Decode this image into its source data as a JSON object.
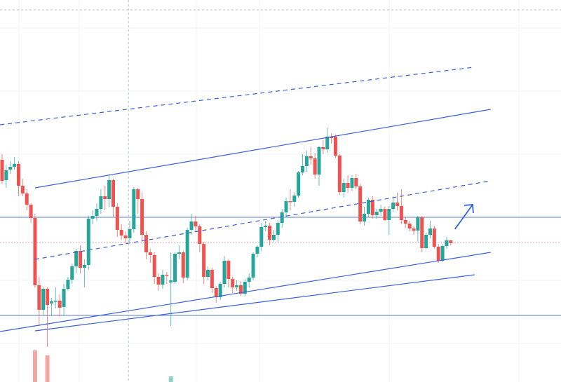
{
  "chart_data": {
    "type": "candlestick",
    "title": "",
    "xlabel": "",
    "ylabel": "",
    "grid": true,
    "colors": {
      "up": "#26a69a",
      "down": "#ef5350",
      "drawing": "#3d5fd6",
      "level": "#5b7bc4",
      "dotted": "#e0a0a0",
      "grid": "#f0f3fa"
    },
    "ylim": [
      0,
      600
    ],
    "candles_ohlc": [
      [
        372,
        380,
        338,
        342
      ],
      [
        343,
        365,
        332,
        357
      ],
      [
        358,
        370,
        352,
        362
      ],
      [
        362,
        376,
        358,
        366
      ],
      [
        366,
        370,
        320,
        335
      ],
      [
        335,
        345,
        320,
        324
      ],
      [
        324,
        330,
        300,
        308
      ],
      [
        308,
        310,
        282,
        289
      ],
      [
        289,
        295,
        190,
        193
      ],
      [
        193,
        205,
        135,
        158
      ],
      [
        158,
        190,
        150,
        188
      ],
      [
        188,
        190,
        105,
        165
      ],
      [
        167,
        175,
        150,
        170
      ],
      [
        170,
        190,
        160,
        171
      ],
      [
        171,
        180,
        148,
        161
      ],
      [
        162,
        195,
        150,
        188
      ],
      [
        188,
        205,
        185,
        201
      ],
      [
        201,
        224,
        195,
        220
      ],
      [
        220,
        245,
        210,
        242
      ],
      [
        242,
        250,
        210,
        218
      ],
      [
        218,
        230,
        190,
        222
      ],
      [
        222,
        292,
        215,
        288
      ],
      [
        288,
        300,
        280,
        292
      ],
      [
        292,
        310,
        285,
        302
      ],
      [
        302,
        330,
        295,
        320
      ],
      [
        320,
        335,
        300,
        316
      ],
      [
        316,
        350,
        305,
        343
      ],
      [
        343,
        345,
        290,
        305
      ],
      [
        305,
        310,
        262,
        272
      ],
      [
        272,
        280,
        258,
        264
      ],
      [
        264,
        270,
        252,
        260
      ],
      [
        260,
        285,
        255,
        273
      ],
      [
        273,
        333,
        268,
        330
      ],
      [
        330,
        332,
        295,
        316
      ],
      [
        316,
        325,
        255,
        265
      ],
      [
        265,
        270,
        230,
        240
      ],
      [
        240,
        245,
        225,
        236
      ],
      [
        236,
        240,
        195,
        205
      ],
      [
        205,
        210,
        185,
        194
      ],
      [
        194,
        215,
        188,
        208
      ],
      [
        208,
        212,
        195,
        207
      ],
      [
        197,
        240,
        135,
        200
      ],
      [
        198,
        240,
        195,
        238
      ],
      [
        238,
        250,
        230,
        240
      ],
      [
        240,
        242,
        196,
        204
      ],
      [
        204,
        275,
        200,
        272
      ],
      [
        272,
        295,
        265,
        284
      ],
      [
        284,
        292,
        270,
        277
      ],
      [
        277,
        280,
        240,
        252
      ],
      [
        252,
        255,
        195,
        205
      ],
      [
        205,
        220,
        200,
        215
      ],
      [
        215,
        218,
        182,
        189
      ],
      [
        189,
        192,
        168,
        176
      ],
      [
        176,
        198,
        172,
        195
      ],
      [
        195,
        235,
        190,
        228
      ],
      [
        228,
        230,
        190,
        202
      ],
      [
        202,
        205,
        182,
        190
      ],
      [
        190,
        200,
        185,
        193
      ],
      [
        193,
        198,
        178,
        181
      ],
      [
        181,
        202,
        178,
        198
      ],
      [
        198,
        210,
        190,
        204
      ],
      [
        204,
        240,
        200,
        238
      ],
      [
        238,
        250,
        233,
        248
      ],
      [
        248,
        282,
        242,
        276
      ],
      [
        276,
        285,
        270,
        278
      ],
      [
        278,
        282,
        250,
        258
      ],
      [
        258,
        272,
        255,
        265
      ],
      [
        265,
        285,
        255,
        282
      ],
      [
        282,
        302,
        275,
        297
      ],
      [
        297,
        318,
        290,
        313
      ],
      [
        313,
        330,
        300,
        312
      ],
      [
        312,
        325,
        305,
        321
      ],
      [
        321,
        356,
        318,
        354
      ],
      [
        354,
        380,
        350,
        363
      ],
      [
        363,
        385,
        355,
        377
      ],
      [
        377,
        390,
        365,
        374
      ],
      [
        374,
        382,
        345,
        351
      ],
      [
        351,
        392,
        335,
        390
      ],
      [
        390,
        400,
        380,
        387
      ],
      [
        387,
        418,
        382,
        405
      ],
      [
        405,
        410,
        395,
        403
      ],
      [
        405,
        408,
        375,
        378
      ],
      [
        378,
        380,
        322,
        326
      ],
      [
        326,
        345,
        318,
        339
      ],
      [
        339,
        350,
        325,
        332
      ],
      [
        332,
        350,
        328,
        346
      ],
      [
        346,
        352,
        330,
        334
      ],
      [
        334,
        338,
        280,
        284
      ],
      [
        284,
        305,
        278,
        295
      ],
      [
        295,
        318,
        290,
        315
      ],
      [
        315,
        320,
        288,
        293
      ],
      [
        293,
        302,
        288,
        298
      ],
      [
        298,
        308,
        292,
        302
      ],
      [
        302,
        305,
        285,
        286
      ],
      [
        286,
        306,
        265,
        302
      ],
      [
        302,
        320,
        298,
        311
      ],
      [
        311,
        325,
        300,
        306
      ],
      [
        306,
        330,
        280,
        286
      ],
      [
        286,
        290,
        275,
        281
      ],
      [
        281,
        285,
        270,
        274
      ],
      [
        274,
        278,
        265,
        271
      ],
      [
        271,
        292,
        255,
        290
      ],
      [
        290,
        292,
        240,
        246
      ],
      [
        246,
        268,
        245,
        265
      ],
      [
        265,
        285,
        260,
        274
      ],
      [
        274,
        278,
        245,
        248
      ],
      [
        248,
        252,
        225,
        228
      ],
      [
        228,
        252,
        226,
        249
      ],
      [
        249,
        262,
        245,
        257
      ],
      [
        257,
        258,
        250,
        253
      ]
    ],
    "volume_bars": [
      {
        "index": 8,
        "value": 45,
        "direction": "down"
      },
      {
        "index": 11,
        "value": 38,
        "direction": "down"
      },
      {
        "index": 41,
        "value": 8,
        "direction": "up"
      }
    ],
    "drawings": {
      "trendlines": [
        {
          "style": "solid",
          "from": [
            8,
            332
          ],
          "to": [
            118.7,
            444
          ]
        },
        {
          "style": "dashed",
          "from": [
            -0.5,
            422
          ],
          "to": [
            114.5,
            504
          ]
        },
        {
          "style": "dashed",
          "from": [
            8,
            230
          ],
          "to": [
            118.7,
            342
          ]
        },
        {
          "style": "solid",
          "from": [
            -0.5,
            127
          ],
          "to": [
            118.7,
            240
          ]
        },
        {
          "style": "solid",
          "from": [
            8,
            128
          ],
          "to": [
            114.8,
            208
          ]
        }
      ],
      "horizontal_levels": [
        {
          "style": "solid",
          "price": 290
        },
        {
          "style": "solid",
          "price": 150
        },
        {
          "style": "dotted",
          "price": 254
        },
        {
          "style": "dashed-gray",
          "price": 586
        }
      ],
      "crosshair_vertical_index": 30.7,
      "arrow": {
        "from": [
          110,
          273
        ],
        "to": [
          114.3,
          308
        ],
        "direction": "up"
      }
    }
  }
}
